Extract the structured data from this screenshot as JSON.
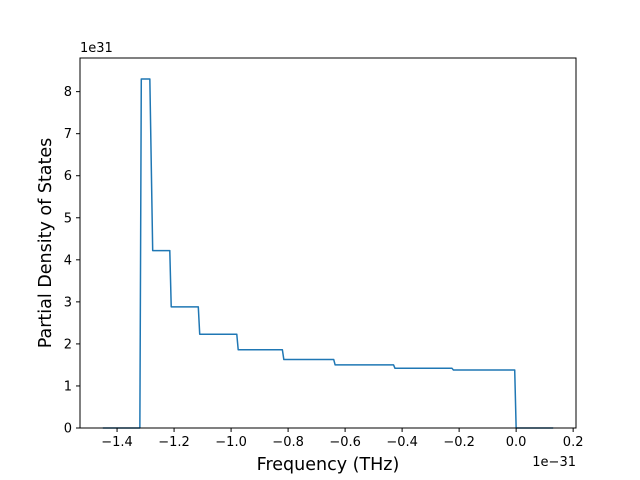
{
  "chart_data": {
    "type": "line",
    "title": "",
    "xlabel": "Frequency (THz)",
    "ylabel": "Partial Density of States",
    "x_offset_label": "1e−31",
    "y_offset_label": "1e31",
    "xlim": [
      -1.53,
      0.21
    ],
    "ylim": [
      0,
      8.8
    ],
    "x_ticks": [
      -1.4,
      -1.2,
      -1.0,
      -0.8,
      -0.6,
      -0.4,
      -0.2,
      0.0,
      0.2
    ],
    "x_tick_labels": [
      "−1.4",
      "−1.2",
      "−1.0",
      "−0.8",
      "−0.6",
      "−0.4",
      "−0.2",
      "0.0",
      "0.2"
    ],
    "y_ticks": [
      0,
      1,
      2,
      3,
      4,
      5,
      6,
      7,
      8
    ],
    "y_tick_labels": [
      "0",
      "1",
      "2",
      "3",
      "4",
      "5",
      "6",
      "7",
      "8"
    ],
    "grid": false,
    "series": [
      {
        "color": "#1f77b4",
        "x": [
          -1.45,
          -1.32,
          -1.315,
          -1.29,
          -1.285,
          -1.275,
          -1.215,
          -1.21,
          -1.115,
          -1.11,
          -0.98,
          -0.975,
          -0.82,
          -0.815,
          -0.64,
          -0.635,
          -0.43,
          -0.425,
          -0.225,
          -0.22,
          -0.005,
          0.0,
          0.13
        ],
        "y": [
          0.0,
          0.0,
          8.3,
          8.3,
          8.3,
          4.22,
          4.22,
          2.88,
          2.88,
          2.23,
          2.23,
          1.86,
          1.86,
          1.63,
          1.63,
          1.5,
          1.5,
          1.42,
          1.42,
          1.38,
          1.38,
          0.0,
          0.0
        ]
      }
    ]
  }
}
